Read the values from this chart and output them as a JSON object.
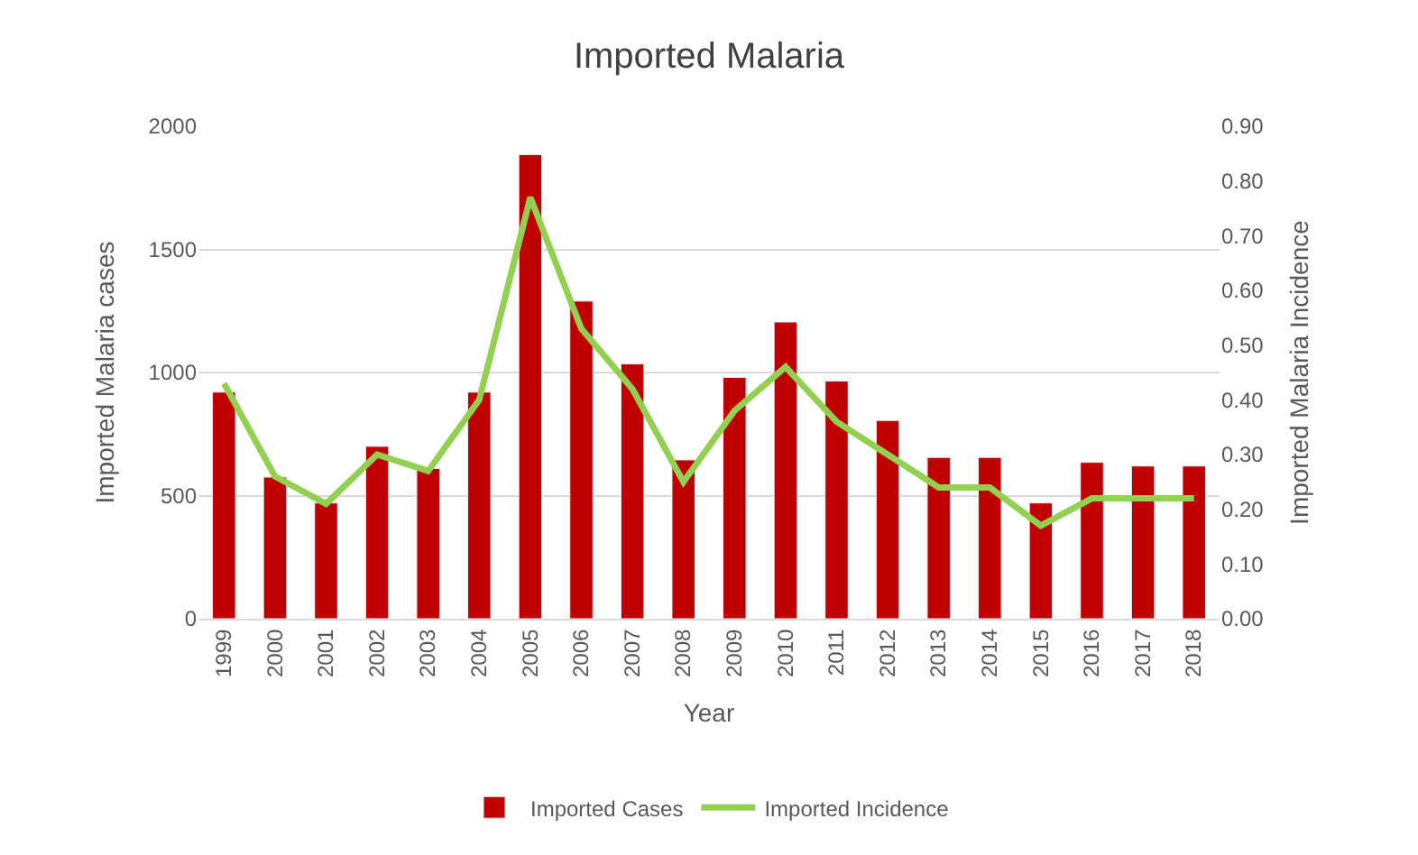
{
  "chart_data": {
    "type": "bar",
    "title": "Imported Malaria",
    "xlabel": "Year",
    "ylabel": "Imported Malaria cases",
    "y2label": "Imported Malaria Incidence",
    "categories": [
      "1999",
      "2000",
      "2001",
      "2002",
      "2003",
      "2004",
      "2005",
      "2006",
      "2007",
      "2008",
      "2009",
      "2010",
      "2011",
      "2012",
      "2013",
      "2014",
      "2015",
      "2016",
      "2017",
      "2018"
    ],
    "series": [
      {
        "name": "Imported Cases",
        "color": "#c00000",
        "values": [
          920,
          575,
          470,
          700,
          610,
          920,
          1885,
          1290,
          1035,
          645,
          980,
          1205,
          965,
          805,
          655,
          655,
          470,
          635,
          620,
          620
        ]
      },
      {
        "name": "Imported Incidence",
        "type": "line",
        "axis": "y2",
        "color": "#92d050",
        "values": [
          0.43,
          0.26,
          0.21,
          0.3,
          0.27,
          0.4,
          0.77,
          0.53,
          0.42,
          0.25,
          0.38,
          0.46,
          0.36,
          0.3,
          0.24,
          0.24,
          0.17,
          0.22,
          0.22,
          0.22
        ]
      }
    ],
    "ylim": [
      0,
      2000
    ],
    "yticks": [
      0,
      500,
      1000,
      1500,
      2000
    ],
    "y2lim": [
      0,
      0.9
    ],
    "y2ticks": [
      {
        "value": 0,
        "label": "0.00"
      },
      {
        "value": 0.1,
        "label": "0.10"
      },
      {
        "value": 0.2,
        "label": "0.20"
      },
      {
        "value": 0.3,
        "label": "0.30"
      },
      {
        "value": 0.4,
        "label": "0.40"
      },
      {
        "value": 0.5,
        "label": "0.50"
      },
      {
        "value": 0.6,
        "label": "0.60"
      },
      {
        "value": 0.7,
        "label": "0.70"
      },
      {
        "value": 0.8,
        "label": "0.80"
      },
      {
        "value": 0.9,
        "label": "0.90"
      }
    ],
    "grid": "y",
    "legend": "bottom",
    "marker": "none",
    "line_style": "solid"
  }
}
